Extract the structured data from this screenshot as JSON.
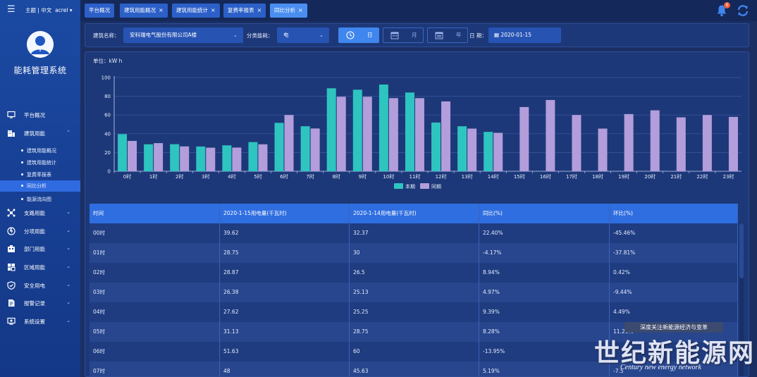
{
  "header": {
    "theme_label": "主题 | 中文",
    "user": "acrel ▾",
    "app_title": "能耗管理系统"
  },
  "sidebar": {
    "items": [
      {
        "label": "平台概况",
        "icon": "monitor-icon",
        "expandable": false
      },
      {
        "label": "建筑用能",
        "icon": "building-icon",
        "expandable": true
      },
      {
        "label": "支路用能",
        "icon": "branch-icon",
        "expandable": true
      },
      {
        "label": "分项用能",
        "icon": "category-icon",
        "expandable": true
      },
      {
        "label": "部门用能",
        "icon": "department-icon",
        "expandable": true
      },
      {
        "label": "区域用能",
        "icon": "region-icon",
        "expandable": true
      },
      {
        "label": "安全用电",
        "icon": "shield-icon",
        "expandable": true
      },
      {
        "label": "报警记录",
        "icon": "alarm-doc-icon",
        "expandable": true
      },
      {
        "label": "系统设置",
        "icon": "settings-icon",
        "expandable": true
      }
    ],
    "subitems": [
      {
        "label": "建筑用能概况",
        "active": false
      },
      {
        "label": "建筑用能统计",
        "active": false
      },
      {
        "label": "复费率报表",
        "active": false
      },
      {
        "label": "同比分析",
        "active": true
      },
      {
        "label": "能源流向图",
        "active": false
      }
    ]
  },
  "tabs": [
    {
      "label": "平台概况",
      "closable": false,
      "active": false
    },
    {
      "label": "建筑用能概况",
      "closable": true,
      "active": false
    },
    {
      "label": "建筑用能统计",
      "closable": true,
      "active": false
    },
    {
      "label": "复费率报表",
      "closable": true,
      "active": false
    },
    {
      "label": "同比分析",
      "closable": true,
      "active": true
    }
  ],
  "notifications": {
    "count": "0"
  },
  "filter": {
    "building_label": "建筑名称：",
    "building_value": "安科瑞电气股份有限公司A楼",
    "category_label": "分类能耗：",
    "category_value": "电",
    "period_buttons": [
      {
        "label": "日",
        "icon": "clock-icon",
        "active": true
      },
      {
        "label": "月",
        "icon": "calendar-icon",
        "active": false
      },
      {
        "label": "年",
        "icon": "calendar-year-icon",
        "active": false
      }
    ],
    "date_label": "日 期：",
    "date_value": "2020-01-15"
  },
  "chart_data": {
    "type": "bar",
    "unit_label": "单位：kW h",
    "categories": [
      "0时",
      "1时",
      "2时",
      "3时",
      "4时",
      "5时",
      "6时",
      "7时",
      "8时",
      "9时",
      "10时",
      "11时",
      "12时",
      "13时",
      "14时",
      "15时",
      "16时",
      "17时",
      "18时",
      "19时",
      "20时",
      "21时",
      "22时",
      "23时"
    ],
    "series": [
      {
        "name": "本期",
        "color": "#2ec4c0",
        "values": [
          39.62,
          28.75,
          28.87,
          26.38,
          27.62,
          31.13,
          51.63,
          48,
          88.5,
          87,
          92.5,
          84,
          52,
          48,
          42,
          null,
          null,
          null,
          null,
          null,
          null,
          null,
          null,
          null
        ]
      },
      {
        "name": "同期",
        "color": "#b39ddb",
        "values": [
          32.37,
          30,
          26.5,
          25.13,
          25.25,
          28.75,
          60,
          45.63,
          79.5,
          79.5,
          78,
          78,
          74.5,
          45.5,
          41,
          68.5,
          76,
          60,
          45.5,
          61,
          65,
          57.5,
          60,
          58
        ]
      }
    ],
    "ylim": [
      0,
      100
    ],
    "yticks": [
      0,
      20,
      40,
      60,
      80,
      100
    ],
    "legend_position": "bottom-center",
    "grid": true
  },
  "table": {
    "columns": [
      "时间",
      "2020-1-15用电量(千瓦时)",
      "2020-1-14用电量(千瓦时)",
      "同比(%)",
      "环比(%)"
    ],
    "rows": [
      [
        "00时",
        "39.62",
        "32.37",
        "22.40%",
        "-45.46%"
      ],
      [
        "01时",
        "28.75",
        "30",
        "-4.17%",
        "-37.81%"
      ],
      [
        "02时",
        "28.87",
        "26.5",
        "8.94%",
        "0.42%"
      ],
      [
        "03时",
        "26.38",
        "25.13",
        "4.97%",
        "-9.44%"
      ],
      [
        "04时",
        "27.62",
        "25.25",
        "9.39%",
        "4.49%"
      ],
      [
        "05时",
        "31.13",
        "28.75",
        "8.28%",
        "11.28%"
      ],
      [
        "06时",
        "51.63",
        "60",
        "-13.95%",
        ""
      ],
      [
        "07时",
        "48",
        "45.63",
        "5.19%",
        "-7.5"
      ]
    ]
  },
  "watermark": {
    "tagline": "深度关注新能源经济与变革",
    "brand": "世纪新能源网",
    "brand_en": "Century new energy network"
  }
}
